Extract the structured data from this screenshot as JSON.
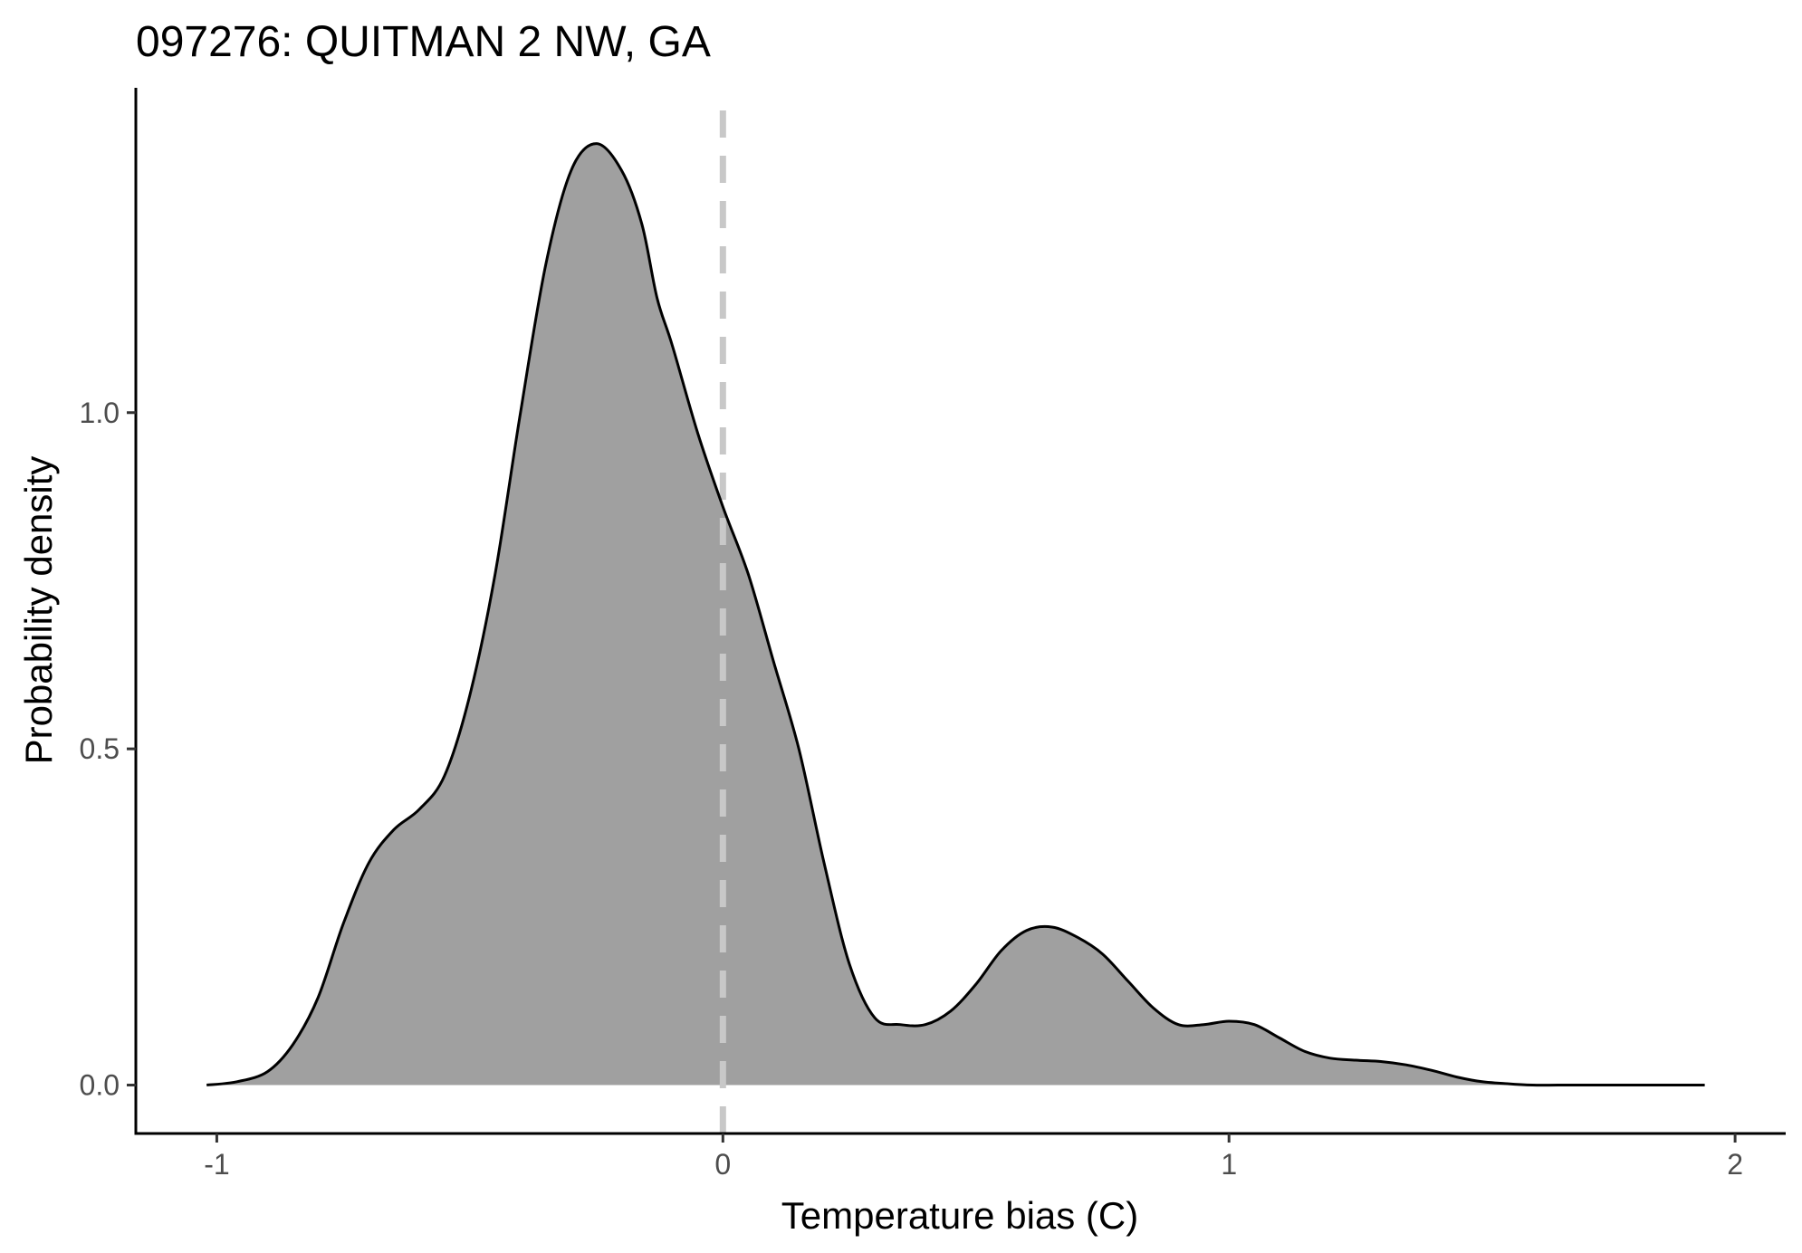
{
  "chart_data": {
    "type": "area",
    "title": "097276: QUITMAN 2 NW, GA",
    "xlabel": "Temperature bias (C)",
    "ylabel": "Probability density",
    "xlim": [
      -1.16,
      2.1
    ],
    "ylim": [
      -0.072,
      1.483
    ],
    "x_ticks": [
      -1,
      0,
      1,
      2
    ],
    "x_tick_labels": [
      "-1",
      "0",
      "1",
      "2"
    ],
    "y_ticks": [
      0.0,
      0.5,
      1.0
    ],
    "y_tick_labels": [
      "0.0",
      "0.5",
      "1.0"
    ],
    "grid": false,
    "legend": "none",
    "reference_line": {
      "x": 0,
      "style": "dashed",
      "color": "#c8c8c8"
    },
    "fill_color": "#a0a0a0",
    "line_color": "#000000",
    "series": [
      {
        "x": [
          -1.02,
          -0.96,
          -0.9,
          -0.85,
          -0.8,
          -0.75,
          -0.7,
          -0.65,
          -0.6,
          -0.55,
          -0.5,
          -0.45,
          -0.4,
          -0.35,
          -0.3,
          -0.25,
          -0.2,
          -0.16,
          -0.13,
          -0.1,
          -0.05,
          0.0,
          0.05,
          0.1,
          0.15,
          0.2,
          0.25,
          0.3,
          0.35,
          0.4,
          0.45,
          0.5,
          0.55,
          0.6,
          0.65,
          0.7,
          0.75,
          0.8,
          0.85,
          0.9,
          0.95,
          1.0,
          1.05,
          1.1,
          1.15,
          1.2,
          1.25,
          1.3,
          1.35,
          1.4,
          1.45,
          1.5,
          1.55,
          1.6,
          1.65,
          1.7,
          1.75,
          1.8,
          1.85,
          1.9,
          1.94
        ],
        "y": [
          0.0,
          0.005,
          0.02,
          0.06,
          0.13,
          0.24,
          0.33,
          0.38,
          0.41,
          0.46,
          0.58,
          0.76,
          1.0,
          1.22,
          1.36,
          1.4,
          1.36,
          1.28,
          1.17,
          1.1,
          0.97,
          0.86,
          0.76,
          0.63,
          0.5,
          0.33,
          0.18,
          0.1,
          0.09,
          0.09,
          0.11,
          0.15,
          0.2,
          0.23,
          0.235,
          0.22,
          0.195,
          0.155,
          0.115,
          0.09,
          0.09,
          0.095,
          0.09,
          0.07,
          0.05,
          0.04,
          0.037,
          0.035,
          0.03,
          0.022,
          0.012,
          0.005,
          0.002,
          0.0,
          0.0,
          0.0,
          0.0,
          0.0,
          0.0,
          0.0,
          0.0
        ]
      }
    ]
  }
}
